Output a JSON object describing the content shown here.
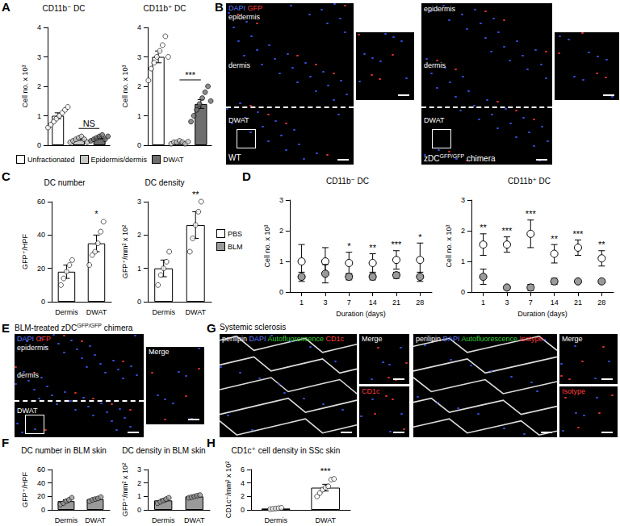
{
  "panel_letters": [
    "A",
    "B",
    "C",
    "D",
    "E",
    "F",
    "G",
    "H"
  ],
  "chart_data": [
    {
      "type": "bar",
      "title": "CD11b⁻ DC",
      "y_label": "Cell no. x 10³",
      "categories": [
        "Unfractionated",
        "Epidermis/dermis",
        "DWAT"
      ],
      "values": [
        1.0,
        0.2,
        0.25
      ],
      "errors": [
        0.1,
        0.03,
        0.03
      ],
      "points": [
        [
          0.6,
          0.7,
          0.8,
          0.9,
          1.0,
          1.1,
          1.2,
          1.3
        ],
        [
          0.1,
          0.15,
          0.2,
          0.25,
          0.3,
          0.2,
          0.1
        ],
        [
          0.15,
          0.2,
          0.25,
          0.3,
          0.35,
          0.2,
          0.3
        ]
      ],
      "colors": [
        "#ffffff",
        "#c8c8c8",
        "#6e6e6e"
      ],
      "ylim": [
        0,
        4
      ],
      "yticks": [
        0,
        1,
        2,
        3,
        4
      ],
      "tick_labels": "y",
      "legend": "bottom",
      "comparisons": [
        {
          "from": "Epidermis/dermis",
          "to": "DWAT",
          "label": "NS"
        }
      ]
    },
    {
      "type": "bar",
      "title": "CD11b⁺ DC",
      "y_label": "Cell no. x 10³",
      "categories": [
        "Unfractionated",
        "Epidermis/dermis",
        "DWAT"
      ],
      "values": [
        3.0,
        0.1,
        1.4
      ],
      "errors": [
        0.2,
        0.02,
        0.15
      ],
      "points": [
        [
          2.2,
          2.6,
          2.8,
          3.0,
          3.2,
          3.4,
          3.7,
          3.0
        ],
        [
          0.05,
          0.1,
          0.1,
          0.15,
          0.1,
          0.05,
          0.12
        ],
        [
          0.8,
          1.0,
          1.2,
          1.4,
          1.6,
          1.8,
          2.0,
          1.5
        ]
      ],
      "colors": [
        "#ffffff",
        "#c8c8c8",
        "#6e6e6e"
      ],
      "ylim": [
        0,
        4
      ],
      "yticks": [
        0,
        1,
        2,
        3,
        4
      ],
      "tick_labels": "y",
      "comparisons": [
        {
          "from": "Epidermis/dermis",
          "to": "DWAT",
          "label": "***"
        }
      ]
    },
    {
      "type": "bar",
      "title": "DC number",
      "y_label": "GFP⁺/HPF",
      "categories": [
        "Dermis",
        "DWAT"
      ],
      "values": [
        18,
        35
      ],
      "errors": [
        4,
        5
      ],
      "points": [
        [
          10,
          14,
          18,
          22,
          25
        ],
        [
          22,
          28,
          30,
          35,
          42,
          48
        ]
      ],
      "colors": [
        "#ffffff",
        "#ffffff"
      ],
      "ylim": [
        0,
        60
      ],
      "yticks": [
        0,
        20,
        40,
        60
      ],
      "annotations": [
        {
          "category": "DWAT",
          "label": "*"
        }
      ]
    },
    {
      "type": "bar",
      "title": "DC density",
      "y_label": "GFP⁺/mm² x 10²",
      "categories": [
        "Dermis",
        "DWAT"
      ],
      "values": [
        1.0,
        2.3
      ],
      "errors": [
        0.25,
        0.4
      ],
      "points": [
        [
          0.5,
          0.8,
          1.0,
          1.2,
          1.5
        ],
        [
          1.5,
          1.9,
          2.3,
          2.7,
          3.0
        ]
      ],
      "colors": [
        "#ffffff",
        "#ffffff"
      ],
      "ylim": [
        0,
        3
      ],
      "yticks": [
        0,
        1,
        2,
        3
      ],
      "annotations": [
        {
          "category": "DWAT",
          "label": "**"
        }
      ]
    },
    {
      "type": "line",
      "title": "CD11b⁻ DC",
      "y_label": "Cell no. x 10³",
      "x_label": "Duration (days)",
      "categories": [
        1,
        3,
        7,
        14,
        21,
        28
      ],
      "marker": "circle",
      "line_style": "none",
      "legend": "left",
      "series": [
        {
          "name": "PBS",
          "color": "#ffffff",
          "values": [
            1.0,
            1.0,
            0.95,
            0.95,
            1.05,
            1.05
          ],
          "errors": [
            0.55,
            0.45,
            0.35,
            0.3,
            0.3,
            0.55
          ]
        },
        {
          "name": "BLM",
          "color": "#9a9a9a",
          "values": [
            0.5,
            0.6,
            0.5,
            0.5,
            0.55,
            0.5
          ],
          "errors": [
            0.15,
            0.3,
            0.1,
            0.1,
            0.1,
            0.15
          ]
        }
      ],
      "annotations": [
        null,
        null,
        "*",
        "**",
        "***",
        "*"
      ],
      "ylim": [
        0,
        3
      ],
      "yticks": [
        0,
        1,
        2,
        3
      ]
    },
    {
      "type": "line",
      "title": "CD11b⁺ DC",
      "y_label": "Cell no. x 10³",
      "x_label": "Duration (days)",
      "categories": [
        1,
        3,
        7,
        14,
        21,
        28
      ],
      "marker": "circle",
      "line_style": "none",
      "series": [
        {
          "name": "PBS",
          "color": "#ffffff",
          "values": [
            1.55,
            1.55,
            1.9,
            1.25,
            1.45,
            1.1
          ],
          "errors": [
            0.35,
            0.25,
            0.45,
            0.3,
            0.25,
            0.25
          ]
        },
        {
          "name": "BLM",
          "color": "#9a9a9a",
          "values": [
            0.5,
            0.15,
            0.15,
            0.35,
            0.35,
            0.35
          ],
          "errors": [
            0.25,
            0.05,
            0.1,
            0.1,
            0.05,
            0.05
          ]
        }
      ],
      "annotations": [
        "**",
        "***",
        "***",
        "**",
        "***",
        "**"
      ],
      "ylim": [
        0,
        3
      ],
      "yticks": [
        0,
        1,
        2,
        3
      ]
    },
    {
      "type": "bar",
      "title": "DC number in BLM skin",
      "y_label": "GFP⁺/HPF",
      "categories": [
        "Dermis",
        "DWAT"
      ],
      "values": [
        13,
        16
      ],
      "errors": [
        2,
        1.5
      ],
      "points": [
        [
          8,
          10,
          13,
          15,
          18
        ],
        [
          13,
          15,
          16,
          17,
          19
        ]
      ],
      "colors": [
        "#9a9a9a",
        "#9a9a9a"
      ],
      "ylim": [
        0,
        60
      ],
      "yticks": [
        0,
        20,
        40,
        60
      ]
    },
    {
      "type": "bar",
      "title": "DC density in BLM skin",
      "y_label": "GFP⁺/mm² x 10²",
      "categories": [
        "Dermis",
        "DWAT"
      ],
      "values": [
        0.7,
        1.0
      ],
      "errors": [
        0.1,
        0.05
      ],
      "points": [
        [
          0.5,
          0.6,
          0.7,
          0.8,
          0.9
        ],
        [
          0.9,
          0.95,
          1.0,
          1.05,
          1.1
        ]
      ],
      "colors": [
        "#9a9a9a",
        "#9a9a9a"
      ],
      "ylim": [
        0,
        3
      ],
      "yticks": [
        0,
        1,
        2,
        3
      ]
    },
    {
      "type": "bar",
      "title": "CD1c⁺ cell density in SSc skin",
      "y_label": "CD1c⁺/mm² x 10²",
      "categories": [
        "Dermis",
        "DWAT"
      ],
      "values": [
        0.2,
        3.3
      ],
      "errors": [
        0.05,
        0.5
      ],
      "points": [
        [
          0.1,
          0.15,
          0.2,
          0.25,
          0.3
        ],
        [
          2.0,
          2.5,
          3.0,
          3.3,
          3.5,
          4.5,
          4.6
        ]
      ],
      "colors": [
        "#ffffff",
        "#ffffff"
      ],
      "ylim": [
        0,
        6
      ],
      "yticks": [
        0,
        2,
        4,
        6
      ],
      "annotations": [
        {
          "category": "DWAT",
          "label": "***"
        }
      ]
    }
  ],
  "images": [
    {
      "panel": "B",
      "items": [
        {
          "channels": [
            {
              "text": "DAPI",
              "color": "#5a78ff"
            },
            {
              "text": "GFP",
              "color": "#ff3a3a"
            }
          ],
          "regions": [
            "epidermis",
            "dermis",
            "DWAT"
          ],
          "caption": [
            {
              "text": "WT"
            }
          ],
          "insets": [
            {
              "label": null,
              "color": "#ffffff"
            }
          ]
        },
        {
          "channels": [],
          "regions": [
            "epidermis",
            "dermis",
            "DWAT"
          ],
          "caption": [
            {
              "text": "zDC"
            },
            {
              "text": "GFP/GFP",
              "sup": true
            },
            {
              "text": " chimera"
            }
          ],
          "insets": [
            {
              "label": null,
              "color": "#ffffff"
            }
          ]
        }
      ]
    },
    {
      "panel": "E",
      "title": [
        {
          "text": "BLM-treated zDC"
        },
        {
          "text": "GFP/GFP",
          "sup": true
        },
        {
          "text": " chimera"
        }
      ],
      "items": [
        {
          "channels": [
            {
              "text": "DAPI",
              "color": "#5a78ff"
            },
            {
              "text": "GFP",
              "color": "#ff3a3a"
            }
          ],
          "regions": [
            "epidermis",
            "dermis",
            "DWAT"
          ],
          "caption": [],
          "insets": [
            {
              "label": "Merge",
              "color": "#ffffff"
            }
          ]
        }
      ]
    },
    {
      "panel": "G",
      "title": [
        {
          "text": "Systemic sclerosis"
        }
      ],
      "items": [
        {
          "channels": [
            {
              "text": "perilipin",
              "color": "#ffffff"
            },
            {
              "text": "DAPI",
              "color": "#5a78ff"
            },
            {
              "text": "Autofluorescence",
              "color": "#33cc33"
            },
            {
              "text": "CD1c",
              "color": "#ff3a3a"
            }
          ],
          "regions": [],
          "caption": [],
          "insets": [
            {
              "label": "Merge",
              "color": "#ffffff"
            },
            {
              "label": "CD1c",
              "color": "#ff3a3a"
            }
          ]
        },
        {
          "channels": [
            {
              "text": "perilipin",
              "color": "#ffffff"
            },
            {
              "text": "DAPI",
              "color": "#5a78ff"
            },
            {
              "text": "Autofluorescence",
              "color": "#33cc33"
            },
            {
              "text": "Isotype",
              "color": "#ff3a3a"
            }
          ],
          "regions": [],
          "caption": [],
          "insets": [
            {
              "label": "Merge",
              "color": "#ffffff"
            },
            {
              "label": "Isotype",
              "color": "#ff3a3a"
            }
          ]
        }
      ]
    }
  ]
}
